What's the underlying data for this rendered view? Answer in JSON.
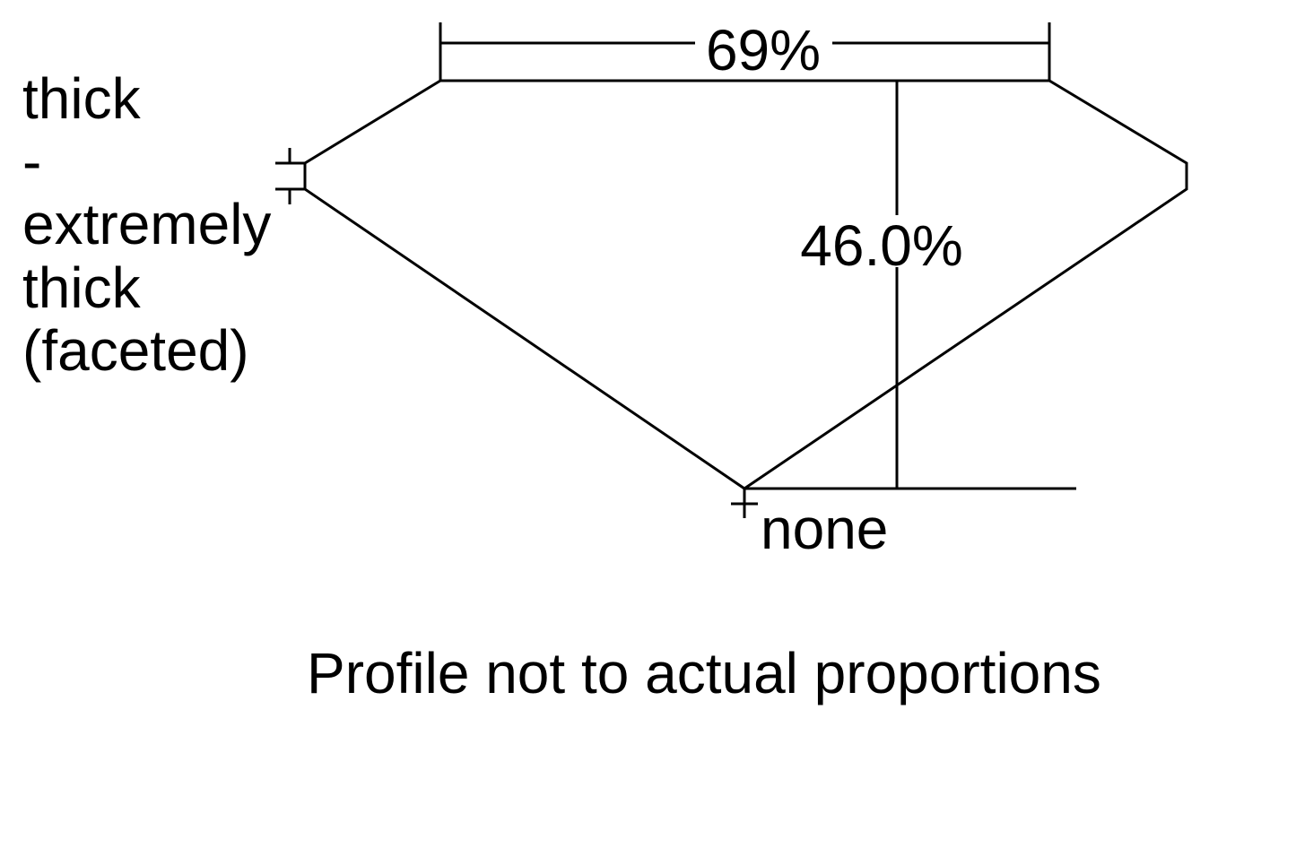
{
  "diagram": {
    "table_percentage": "69%",
    "depth_percentage": "46.0%",
    "girdle_label_lines": [
      "thick",
      "-",
      "extremely",
      "thick",
      "(faceted)"
    ],
    "culet_label": "none",
    "footnote": "Profile not to actual proportions",
    "line_color": "#000000",
    "background_color": "#ffffff"
  }
}
